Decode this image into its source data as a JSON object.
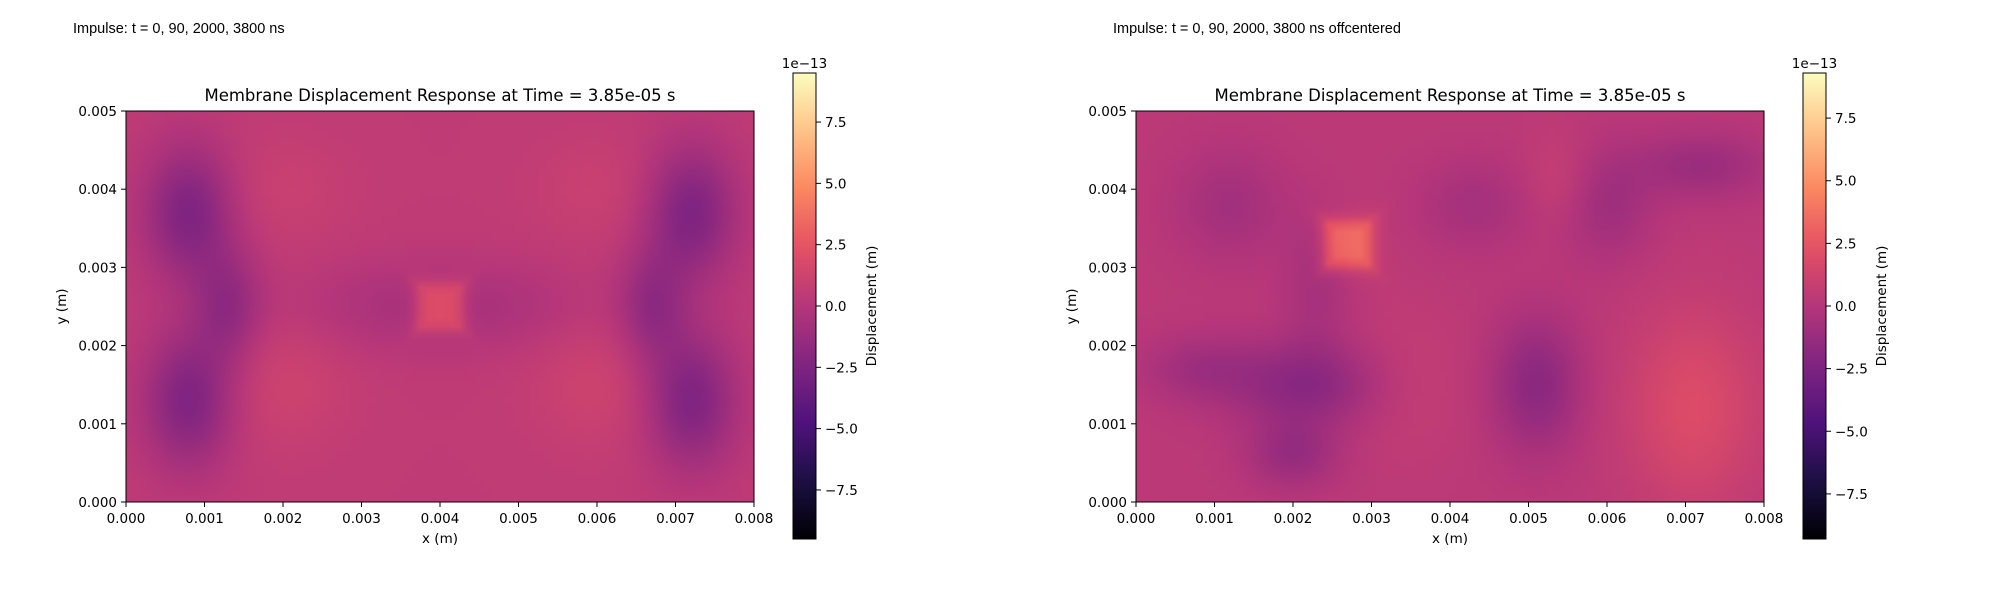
{
  "chart_data": [
    {
      "type": "heatmap",
      "caption": "Impulse: t = 0, 90, 2000, 3800 ns",
      "title": "Membrane Displacement Response at Time = 3.85e-05 s",
      "xlabel": "x (m)",
      "ylabel": "y (m)",
      "xlim": [
        0.0,
        0.008
      ],
      "ylim": [
        0.0,
        0.005
      ],
      "x_ticks": [
        "0.000",
        "0.001",
        "0.002",
        "0.003",
        "0.004",
        "0.005",
        "0.006",
        "0.007",
        "0.008"
      ],
      "y_ticks": [
        "0.000",
        "0.001",
        "0.002",
        "0.003",
        "0.004",
        "0.005"
      ],
      "colormap": "magma",
      "colorbar": {
        "label": "Displacement (m)",
        "offset_text": "1e−13",
        "range": [
          -9.5,
          9.5
        ],
        "ticks": [
          -7.5,
          -5.0,
          -2.5,
          0.0,
          2.5,
          5.0,
          7.5
        ],
        "tick_labels": [
          "−7.5",
          "−5.0",
          "−2.5",
          "0.0",
          "2.5",
          "5.0",
          "7.5"
        ]
      },
      "field": {
        "base": 0.5,
        "features": [
          {
            "x": 0.004,
            "y": 0.0025,
            "sx": 0.0003,
            "sy": 0.0003,
            "amp": 2.6,
            "shape": "square"
          },
          {
            "x": 0.0008,
            "y": 0.0037,
            "sx": 0.0004,
            "sy": 0.0006,
            "amp": -3.0
          },
          {
            "x": 0.0008,
            "y": 0.0013,
            "sx": 0.0004,
            "sy": 0.0006,
            "amp": -3.0
          },
          {
            "x": 0.0013,
            "y": 0.0025,
            "sx": 0.0003,
            "sy": 0.0005,
            "amp": -2.0
          },
          {
            "x": 0.0072,
            "y": 0.0037,
            "sx": 0.0004,
            "sy": 0.0006,
            "amp": -3.0
          },
          {
            "x": 0.0072,
            "y": 0.0013,
            "sx": 0.0004,
            "sy": 0.0006,
            "amp": -3.0
          },
          {
            "x": 0.0067,
            "y": 0.0025,
            "sx": 0.0003,
            "sy": 0.0005,
            "amp": -2.0
          },
          {
            "x": 0.004,
            "y": 0.0025,
            "sx": 0.0012,
            "sy": 0.0004,
            "amp": -1.2
          },
          {
            "x": 0.002,
            "y": 0.0015,
            "sx": 0.0006,
            "sy": 0.0006,
            "amp": 0.7
          },
          {
            "x": 0.006,
            "y": 0.0015,
            "sx": 0.0006,
            "sy": 0.0006,
            "amp": 0.7
          },
          {
            "x": 0.002,
            "y": 0.004,
            "sx": 0.0006,
            "sy": 0.0005,
            "amp": 0.5
          },
          {
            "x": 0.006,
            "y": 0.004,
            "sx": 0.0006,
            "sy": 0.0005,
            "amp": 0.5
          }
        ]
      }
    },
    {
      "type": "heatmap",
      "caption": "Impulse: t = 0, 90, 2000, 3800 ns offcentered",
      "title": "Membrane Displacement Response at Time = 3.85e-05 s",
      "xlabel": "x (m)",
      "ylabel": "y (m)",
      "xlim": [
        0.0,
        0.008
      ],
      "ylim": [
        0.0,
        0.005
      ],
      "x_ticks": [
        "0.000",
        "0.001",
        "0.002",
        "0.003",
        "0.004",
        "0.005",
        "0.006",
        "0.007",
        "0.008"
      ],
      "y_ticks": [
        "0.000",
        "0.001",
        "0.002",
        "0.003",
        "0.004",
        "0.005"
      ],
      "colormap": "magma",
      "colorbar": {
        "label": "Displacement (m)",
        "offset_text": "1e−13",
        "range": [
          -9.3,
          9.3
        ],
        "ticks": [
          -7.5,
          -5.0,
          -2.5,
          0.0,
          2.5,
          5.0,
          7.5
        ],
        "tick_labels": [
          "−7.5",
          "−5.0",
          "−2.5",
          "0.0",
          "2.5",
          "5.0",
          "7.5"
        ]
      },
      "field": {
        "base": 0.3,
        "features": [
          {
            "x": 0.0027,
            "y": 0.0033,
            "sx": 0.0003,
            "sy": 0.0003,
            "amp": 3.4,
            "shape": "square"
          },
          {
            "x": 0.0022,
            "y": 0.0015,
            "sx": 0.0007,
            "sy": 0.0004,
            "amp": -2.3
          },
          {
            "x": 0.002,
            "y": 0.0006,
            "sx": 0.0004,
            "sy": 0.0003,
            "amp": -1.6
          },
          {
            "x": 0.0008,
            "y": 0.0017,
            "sx": 0.0005,
            "sy": 0.0003,
            "amp": -1.2
          },
          {
            "x": 0.0051,
            "y": 0.0015,
            "sx": 0.0004,
            "sy": 0.0006,
            "amp": -2.2
          },
          {
            "x": 0.0043,
            "y": 0.0038,
            "sx": 0.0005,
            "sy": 0.0004,
            "amp": -1.0
          },
          {
            "x": 0.0012,
            "y": 0.0038,
            "sx": 0.0005,
            "sy": 0.0005,
            "amp": -1.1
          },
          {
            "x": 0.0023,
            "y": 0.0028,
            "sx": 0.0003,
            "sy": 0.0006,
            "amp": -1.0
          },
          {
            "x": 0.0072,
            "y": 0.0043,
            "sx": 0.0006,
            "sy": 0.0003,
            "amp": -1.5
          },
          {
            "x": 0.006,
            "y": 0.0038,
            "sx": 0.0004,
            "sy": 0.0005,
            "amp": -1.3
          },
          {
            "x": 0.0071,
            "y": 0.0012,
            "sx": 0.0006,
            "sy": 0.0009,
            "amp": 1.6
          },
          {
            "x": 0.0054,
            "y": 0.0041,
            "sx": 0.0003,
            "sy": 0.0004,
            "amp": 0.7
          },
          {
            "x": 0.0033,
            "y": 0.0015,
            "sx": 0.0006,
            "sy": 0.0006,
            "amp": 0.6
          }
        ]
      }
    }
  ]
}
